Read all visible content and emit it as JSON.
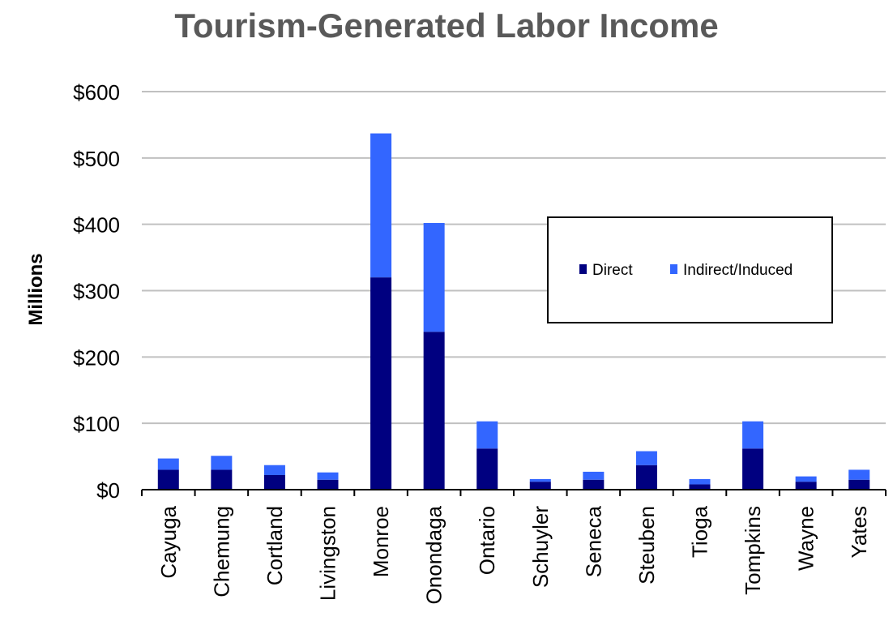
{
  "chart_data": {
    "type": "bar",
    "stacked": true,
    "title": "Tourism-Generated Labor Income",
    "xlabel": "",
    "ylabel": "Millions",
    "ylim": [
      0,
      600
    ],
    "yticks": [
      0,
      100,
      200,
      300,
      400,
      500,
      600
    ],
    "ytick_labels": [
      "$0",
      "$100",
      "$200",
      "$300",
      "$400",
      "$500",
      "$600"
    ],
    "categories": [
      "Cayuga",
      "Chemung",
      "Cortland",
      "Livingston",
      "Monroe",
      "Onondaga",
      "Ontario",
      "Schuyler",
      "Seneca",
      "Steuben",
      "Tioga",
      "Tompkins",
      "Wayne",
      "Yates"
    ],
    "series": [
      {
        "name": "Direct",
        "color": "#000080",
        "values": [
          30,
          30,
          22,
          15,
          320,
          238,
          62,
          12,
          15,
          37,
          8,
          62,
          12,
          15
        ]
      },
      {
        "name": "Indirect/Induced",
        "color": "#3366FF",
        "values": [
          17,
          21,
          15,
          11,
          217,
          164,
          41,
          4,
          12,
          21,
          8,
          41,
          8,
          15
        ]
      }
    ],
    "grid": true,
    "legend_position": "center-right"
  }
}
